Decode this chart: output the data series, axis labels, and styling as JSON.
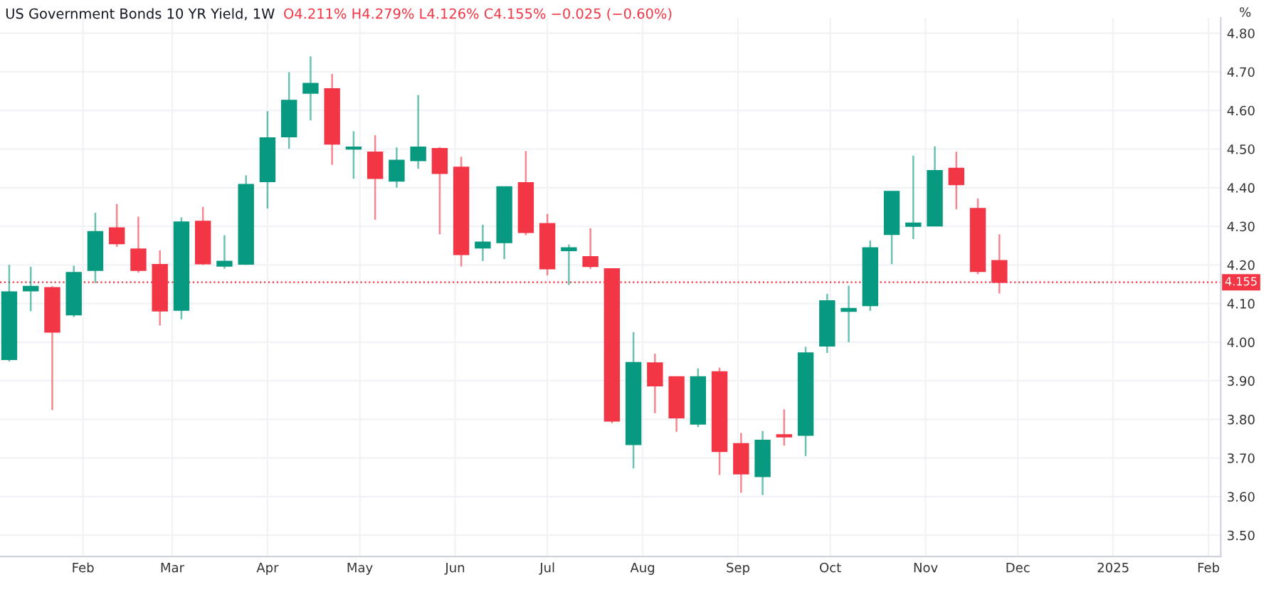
{
  "chart_data": {
    "type": "candlestick",
    "title": "US Government Bonds 10 YR Yield, 1W",
    "ylabel": "%",
    "annotations": [
      "O4.211% H4.279% L4.126% C4.155% −0.025 (−0.60%)"
    ],
    "x": [
      "2024-01-08",
      "2024-01-15",
      "2024-01-22",
      "2024-01-29",
      "2024-02-05",
      "2024-02-12",
      "2024-02-19",
      "2024-02-26",
      "2024-03-04",
      "2024-03-11",
      "2024-03-18",
      "2024-03-25",
      "2024-04-01",
      "2024-04-08",
      "2024-04-15",
      "2024-04-22",
      "2024-04-29",
      "2024-05-06",
      "2024-05-13",
      "2024-05-20",
      "2024-05-27",
      "2024-06-03",
      "2024-06-10",
      "2024-06-17",
      "2024-06-24",
      "2024-07-01",
      "2024-07-08",
      "2024-07-15",
      "2024-07-22",
      "2024-07-29",
      "2024-08-05",
      "2024-08-12",
      "2024-08-19",
      "2024-08-26",
      "2024-09-02",
      "2024-09-09",
      "2024-09-16",
      "2024-09-23",
      "2024-09-30",
      "2024-10-07",
      "2024-10-14",
      "2024-10-21",
      "2024-10-28",
      "2024-11-04",
      "2024-11-11",
      "2024-11-18",
      "2024-11-25"
    ],
    "ohlc": [
      [
        3.955,
        4.2,
        3.95,
        4.13
      ],
      [
        4.133,
        4.195,
        4.08,
        4.144
      ],
      [
        4.141,
        4.145,
        3.824,
        4.026
      ],
      [
        4.071,
        4.198,
        4.065,
        4.18
      ],
      [
        4.186,
        4.335,
        4.153,
        4.286
      ],
      [
        4.296,
        4.358,
        4.247,
        4.255
      ],
      [
        4.241,
        4.325,
        4.18,
        4.186
      ],
      [
        4.201,
        4.238,
        4.043,
        4.081
      ],
      [
        4.083,
        4.323,
        4.059,
        4.311
      ],
      [
        4.313,
        4.35,
        4.2,
        4.203
      ],
      [
        4.197,
        4.277,
        4.19,
        4.209
      ],
      [
        4.202,
        4.432,
        4.2,
        4.408
      ],
      [
        4.416,
        4.598,
        4.346,
        4.529
      ],
      [
        4.532,
        4.699,
        4.501,
        4.626
      ],
      [
        4.645,
        4.74,
        4.574,
        4.67
      ],
      [
        4.656,
        4.695,
        4.459,
        4.513
      ],
      [
        4.5,
        4.546,
        4.423,
        4.505
      ],
      [
        4.492,
        4.536,
        4.317,
        4.424
      ],
      [
        4.417,
        4.504,
        4.4,
        4.471
      ],
      [
        4.47,
        4.64,
        4.449,
        4.505
      ],
      [
        4.501,
        4.505,
        4.279,
        4.437
      ],
      [
        4.453,
        4.48,
        4.196,
        4.227
      ],
      [
        4.244,
        4.304,
        4.21,
        4.259
      ],
      [
        4.258,
        4.402,
        4.215,
        4.402
      ],
      [
        4.413,
        4.495,
        4.277,
        4.284
      ],
      [
        4.307,
        4.332,
        4.173,
        4.19
      ],
      [
        4.237,
        4.253,
        4.148,
        4.244
      ],
      [
        4.221,
        4.295,
        4.19,
        4.196
      ],
      [
        4.19,
        4.19,
        3.79,
        3.796
      ],
      [
        3.735,
        4.026,
        3.673,
        3.947
      ],
      [
        3.946,
        3.97,
        3.816,
        3.887
      ],
      [
        3.91,
        3.91,
        3.768,
        3.804
      ],
      [
        3.788,
        3.932,
        3.78,
        3.91
      ],
      [
        3.923,
        3.934,
        3.656,
        3.717
      ],
      [
        3.737,
        3.765,
        3.61,
        3.659
      ],
      [
        3.652,
        3.77,
        3.604,
        3.746
      ],
      [
        3.76,
        3.826,
        3.732,
        3.755
      ],
      [
        3.759,
        3.988,
        3.705,
        3.972
      ],
      [
        3.99,
        4.125,
        3.972,
        4.107
      ],
      [
        4.08,
        4.146,
        4.0,
        4.087
      ],
      [
        4.095,
        4.263,
        4.081,
        4.244
      ],
      [
        4.279,
        4.39,
        4.202,
        4.39
      ],
      [
        4.3,
        4.483,
        4.267,
        4.308
      ],
      [
        4.301,
        4.507,
        4.3,
        4.444
      ],
      [
        4.45,
        4.493,
        4.344,
        4.408
      ],
      [
        4.346,
        4.372,
        4.176,
        4.183
      ],
      [
        4.211,
        4.279,
        4.126,
        4.155
      ]
    ],
    "colors": [
      "#089981",
      "#089981",
      "#f23645",
      "#089981",
      "#089981",
      "#f23645",
      "#f23645",
      "#f23645",
      "#089981",
      "#f23645",
      "#089981",
      "#089981",
      "#089981",
      "#089981",
      "#089981",
      "#f23645",
      "#089981",
      "#f23645",
      "#089981",
      "#089981",
      "#f23645",
      "#f23645",
      "#089981",
      "#089981",
      "#f23645",
      "#f23645",
      "#089981",
      "#f23645",
      "#f23645",
      "#089981",
      "#f23645",
      "#f23645",
      "#089981",
      "#f23645",
      "#f23645",
      "#089981",
      "#f23645",
      "#089981",
      "#089981",
      "#089981",
      "#089981",
      "#089981",
      "#089981",
      "#089981",
      "#f23645",
      "#f23645",
      "#f23645"
    ],
    "xlim": [
      "2024-01-05",
      "2025-02-05"
    ],
    "xticks": [
      {
        "value": "2024-02-01",
        "label": "Feb"
      },
      {
        "value": "2024-03-01",
        "label": "Mar"
      },
      {
        "value": "2024-04-01",
        "label": "Apr"
      },
      {
        "value": "2024-05-01",
        "label": "May"
      },
      {
        "value": "2024-06-01",
        "label": "Jun"
      },
      {
        "value": "2024-07-01",
        "label": "Jul"
      },
      {
        "value": "2024-08-01",
        "label": "Aug"
      },
      {
        "value": "2024-09-01",
        "label": "Sep"
      },
      {
        "value": "2024-10-01",
        "label": "Oct"
      },
      {
        "value": "2024-11-01",
        "label": "Nov"
      },
      {
        "value": "2024-12-01",
        "label": "Dec"
      },
      {
        "value": "2025-01-01",
        "label": "2025"
      },
      {
        "value": "2025-02-01",
        "label": "Feb"
      }
    ],
    "ylim": [
      3.445,
      4.84
    ],
    "yticks": [
      {
        "value": 3.5,
        "label": "3.50"
      },
      {
        "value": 3.6,
        "label": "3.60"
      },
      {
        "value": 3.7,
        "label": "3.70"
      },
      {
        "value": 3.8,
        "label": "3.80"
      },
      {
        "value": 3.9,
        "label": "3.90"
      },
      {
        "value": 4.0,
        "label": "4.00"
      },
      {
        "value": 4.1,
        "label": "4.10"
      },
      {
        "value": 4.2,
        "label": "4.20"
      },
      {
        "value": 4.3,
        "label": "4.30"
      },
      {
        "value": 4.4,
        "label": "4.40"
      },
      {
        "value": 4.5,
        "label": "4.50"
      },
      {
        "value": 4.6,
        "label": "4.60"
      },
      {
        "value": 4.7,
        "label": "4.70"
      },
      {
        "value": 4.8,
        "label": "4.80"
      }
    ],
    "ref_lines": [
      {
        "axis": "y",
        "value": 4.155,
        "label": "4.155",
        "color": "#f23645",
        "line_style": "dotted"
      }
    ],
    "grid": true
  }
}
